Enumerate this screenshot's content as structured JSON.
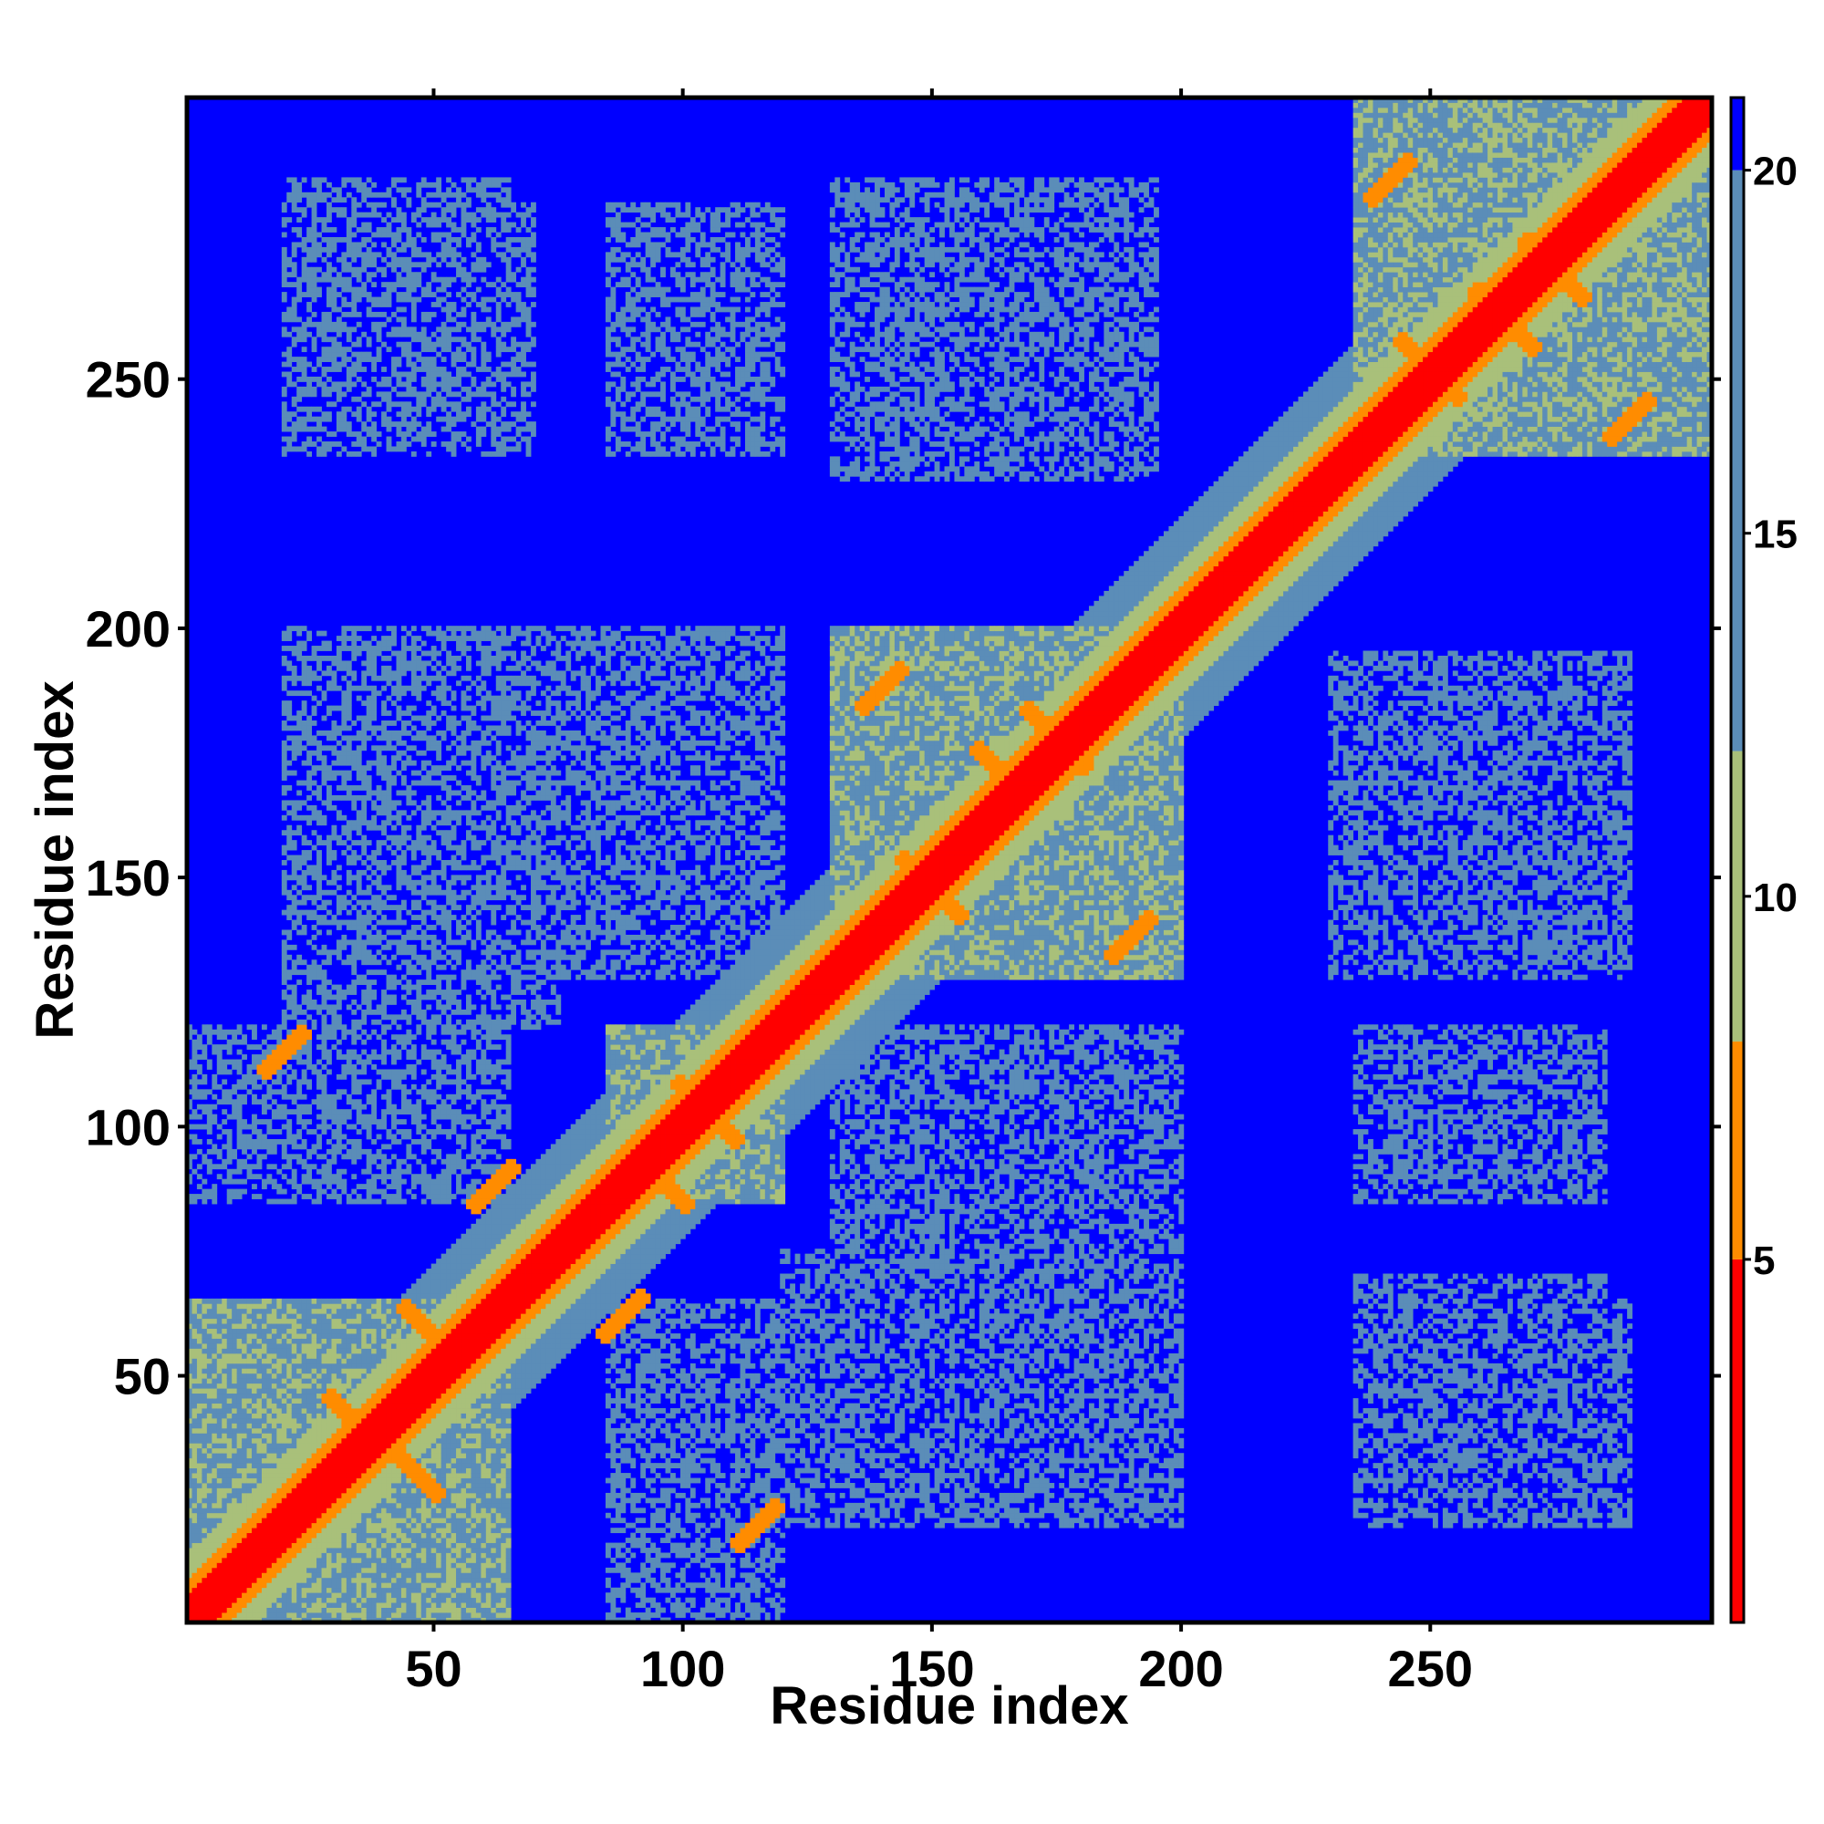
{
  "chart_data": {
    "type": "heatmap",
    "title": "",
    "xlabel": "Residue index",
    "ylabel": "Residue index",
    "xlim": [
      1,
      306
    ],
    "ylim": [
      1,
      306
    ],
    "x_ticks": [
      50,
      100,
      150,
      200,
      250
    ],
    "y_ticks": [
      50,
      100,
      150,
      200,
      250
    ],
    "colorbar": {
      "range": [
        0,
        21
      ],
      "ticks": [
        5,
        10,
        15,
        20
      ],
      "colors": [
        "#ff0000",
        "#ff8c00",
        "#a9c07a",
        "#5b8db8",
        "#0000ff"
      ],
      "breaks": [
        5,
        8,
        12,
        20
      ]
    },
    "domains": [
      {
        "start": 1,
        "end": 65
      },
      {
        "start": 85,
        "end": 120
      },
      {
        "start": 130,
        "end": 200
      },
      {
        "start": 235,
        "end": 306
      }
    ],
    "secondary_contacts": [
      {
        "cx": 35,
        "cy": 40,
        "dir": "anti"
      },
      {
        "cx": 50,
        "cy": 58,
        "dir": "anti"
      },
      {
        "cx": 45,
        "cy": 32,
        "dir": "anti"
      },
      {
        "cx": 105,
        "cy": 103,
        "dir": "anti"
      },
      {
        "cx": 95,
        "cy": 90,
        "dir": "anti"
      },
      {
        "cx": 150,
        "cy": 148,
        "dir": "anti"
      },
      {
        "cx": 175,
        "cy": 178,
        "dir": "anti"
      },
      {
        "cx": 165,
        "cy": 170,
        "dir": "anti"
      },
      {
        "cx": 275,
        "cy": 272,
        "dir": "anti"
      },
      {
        "cx": 265,
        "cy": 262,
        "dir": "anti"
      },
      {
        "cx": 250,
        "cy": 252,
        "dir": "anti"
      },
      {
        "cx": 62,
        "cy": 88,
        "dir": "par"
      },
      {
        "cx": 88,
        "cy": 62,
        "dir": "par"
      },
      {
        "cx": 140,
        "cy": 188,
        "dir": "par"
      },
      {
        "cx": 190,
        "cy": 138,
        "dir": "par"
      },
      {
        "cx": 242,
        "cy": 290,
        "dir": "par"
      },
      {
        "cx": 290,
        "cy": 242,
        "dir": "par"
      },
      {
        "cx": 115,
        "cy": 20,
        "dir": "par"
      },
      {
        "cx": 20,
        "cy": 115,
        "dir": "par"
      }
    ],
    "inter_domain_clusters": [
      {
        "x": [
          1,
          65
        ],
        "y": [
          85,
          120
        ]
      },
      {
        "x": [
          85,
          120
        ],
        "y": [
          1,
          65
        ]
      },
      {
        "x": [
          20,
          120
        ],
        "y": [
          130,
          200
        ]
      },
      {
        "x": [
          130,
          200
        ],
        "y": [
          20,
          120
        ]
      },
      {
        "x": [
          20,
          70
        ],
        "y": [
          235,
          285
        ]
      },
      {
        "x": [
          85,
          120
        ],
        "y": [
          235,
          285
        ]
      },
      {
        "x": [
          130,
          195
        ],
        "y": [
          230,
          290
        ]
      },
      {
        "x": [
          240,
          290
        ],
        "y": [
          130,
          195
        ]
      },
      {
        "x": [
          235,
          290
        ],
        "y": [
          20,
          65
        ]
      },
      {
        "x": [
          235,
          285
        ],
        "y": [
          85,
          115
        ]
      },
      {
        "x": [
          120,
          195
        ],
        "y": [
          20,
          75
        ]
      },
      {
        "x": [
          130,
          195
        ],
        "y": [
          80,
          120
        ]
      }
    ]
  }
}
